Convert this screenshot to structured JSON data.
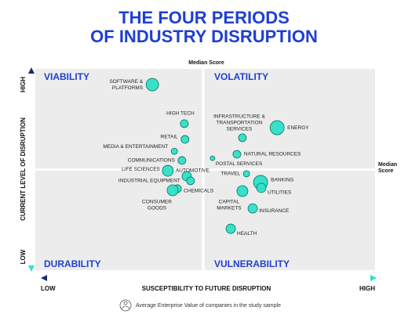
{
  "chart_data": {
    "type": "scatter",
    "title": [
      "THE FOUR PERIODS",
      "OF INDUSTRY DISRUPTION"
    ],
    "x_label": "SUSCEPTIBILITY TO FUTURE DISRUPTION",
    "x_low": "LOW",
    "x_high": "HIGH",
    "y_label": "CURRENT LEVEL OF DISRUPTION",
    "y_low": "LOW",
    "y_high": "HIGH",
    "quadrants": [
      "VIABILITY",
      "VOLATILITY",
      "DURABILITY",
      "VULNERABILITY"
    ],
    "median": {
      "label": "Median Score",
      "x": 5,
      "y": 5
    },
    "legend": "Average Enterprise Value of companies in the study sample",
    "xlim": [
      0,
      10
    ],
    "ylim": [
      0,
      10
    ],
    "color": "#2de0c8",
    "labels": [
      [
        "SOFTWARE &",
        "PLATFORMS"
      ],
      [
        "HIGH TECH"
      ],
      [
        "RETAIL"
      ],
      [
        "MEDIA & ENTERTAINMENT"
      ],
      [
        "COMMUNICATIONS"
      ],
      [
        "LIFE SCIENCES"
      ],
      [
        "AUTOMOTIVE"
      ],
      [
        "INDUSTRIAL EQUIPMENT"
      ],
      [
        "CHEMICALS"
      ],
      [
        "CONSUMER",
        "GOODS"
      ],
      [
        "INFRASTRUCTURE &",
        "TRANSPORTATION",
        "SERVICES"
      ],
      [
        "ENERGY"
      ],
      [
        "POSTAL SERVICES"
      ],
      [
        "NATURAL RESOURCES"
      ],
      [
        "TRAVEL"
      ],
      [
        "BANKING"
      ],
      [
        "UTILITIES"
      ],
      [
        "CAPITAL",
        "MARKETS"
      ],
      [
        "INSURANCE"
      ],
      [
        "HEALTH"
      ]
    ],
    "x": [
      3.52,
      4.45,
      4.47,
      4.16,
      4.38,
      3.97,
      4.52,
      4.63,
      4.25,
      4.11,
      6.14,
      7.15,
      5.27,
      5.98,
      6.26,
      6.67,
      6.69,
      6.14,
      6.44,
      5.8
    ],
    "y": [
      9.22,
      7.28,
      6.5,
      5.91,
      5.45,
      4.94,
      4.67,
      4.44,
      4.05,
      3.97,
      6.58,
      7.08,
      5.56,
      5.76,
      4.79,
      4.36,
      4.09,
      3.93,
      3.07,
      2.06
    ],
    "size": [
      8,
      5,
      5,
      4,
      5,
      7,
      6,
      5,
      5,
      7,
      5,
      9,
      3,
      5,
      4,
      9,
      6,
      7,
      6,
      6
    ]
  }
}
